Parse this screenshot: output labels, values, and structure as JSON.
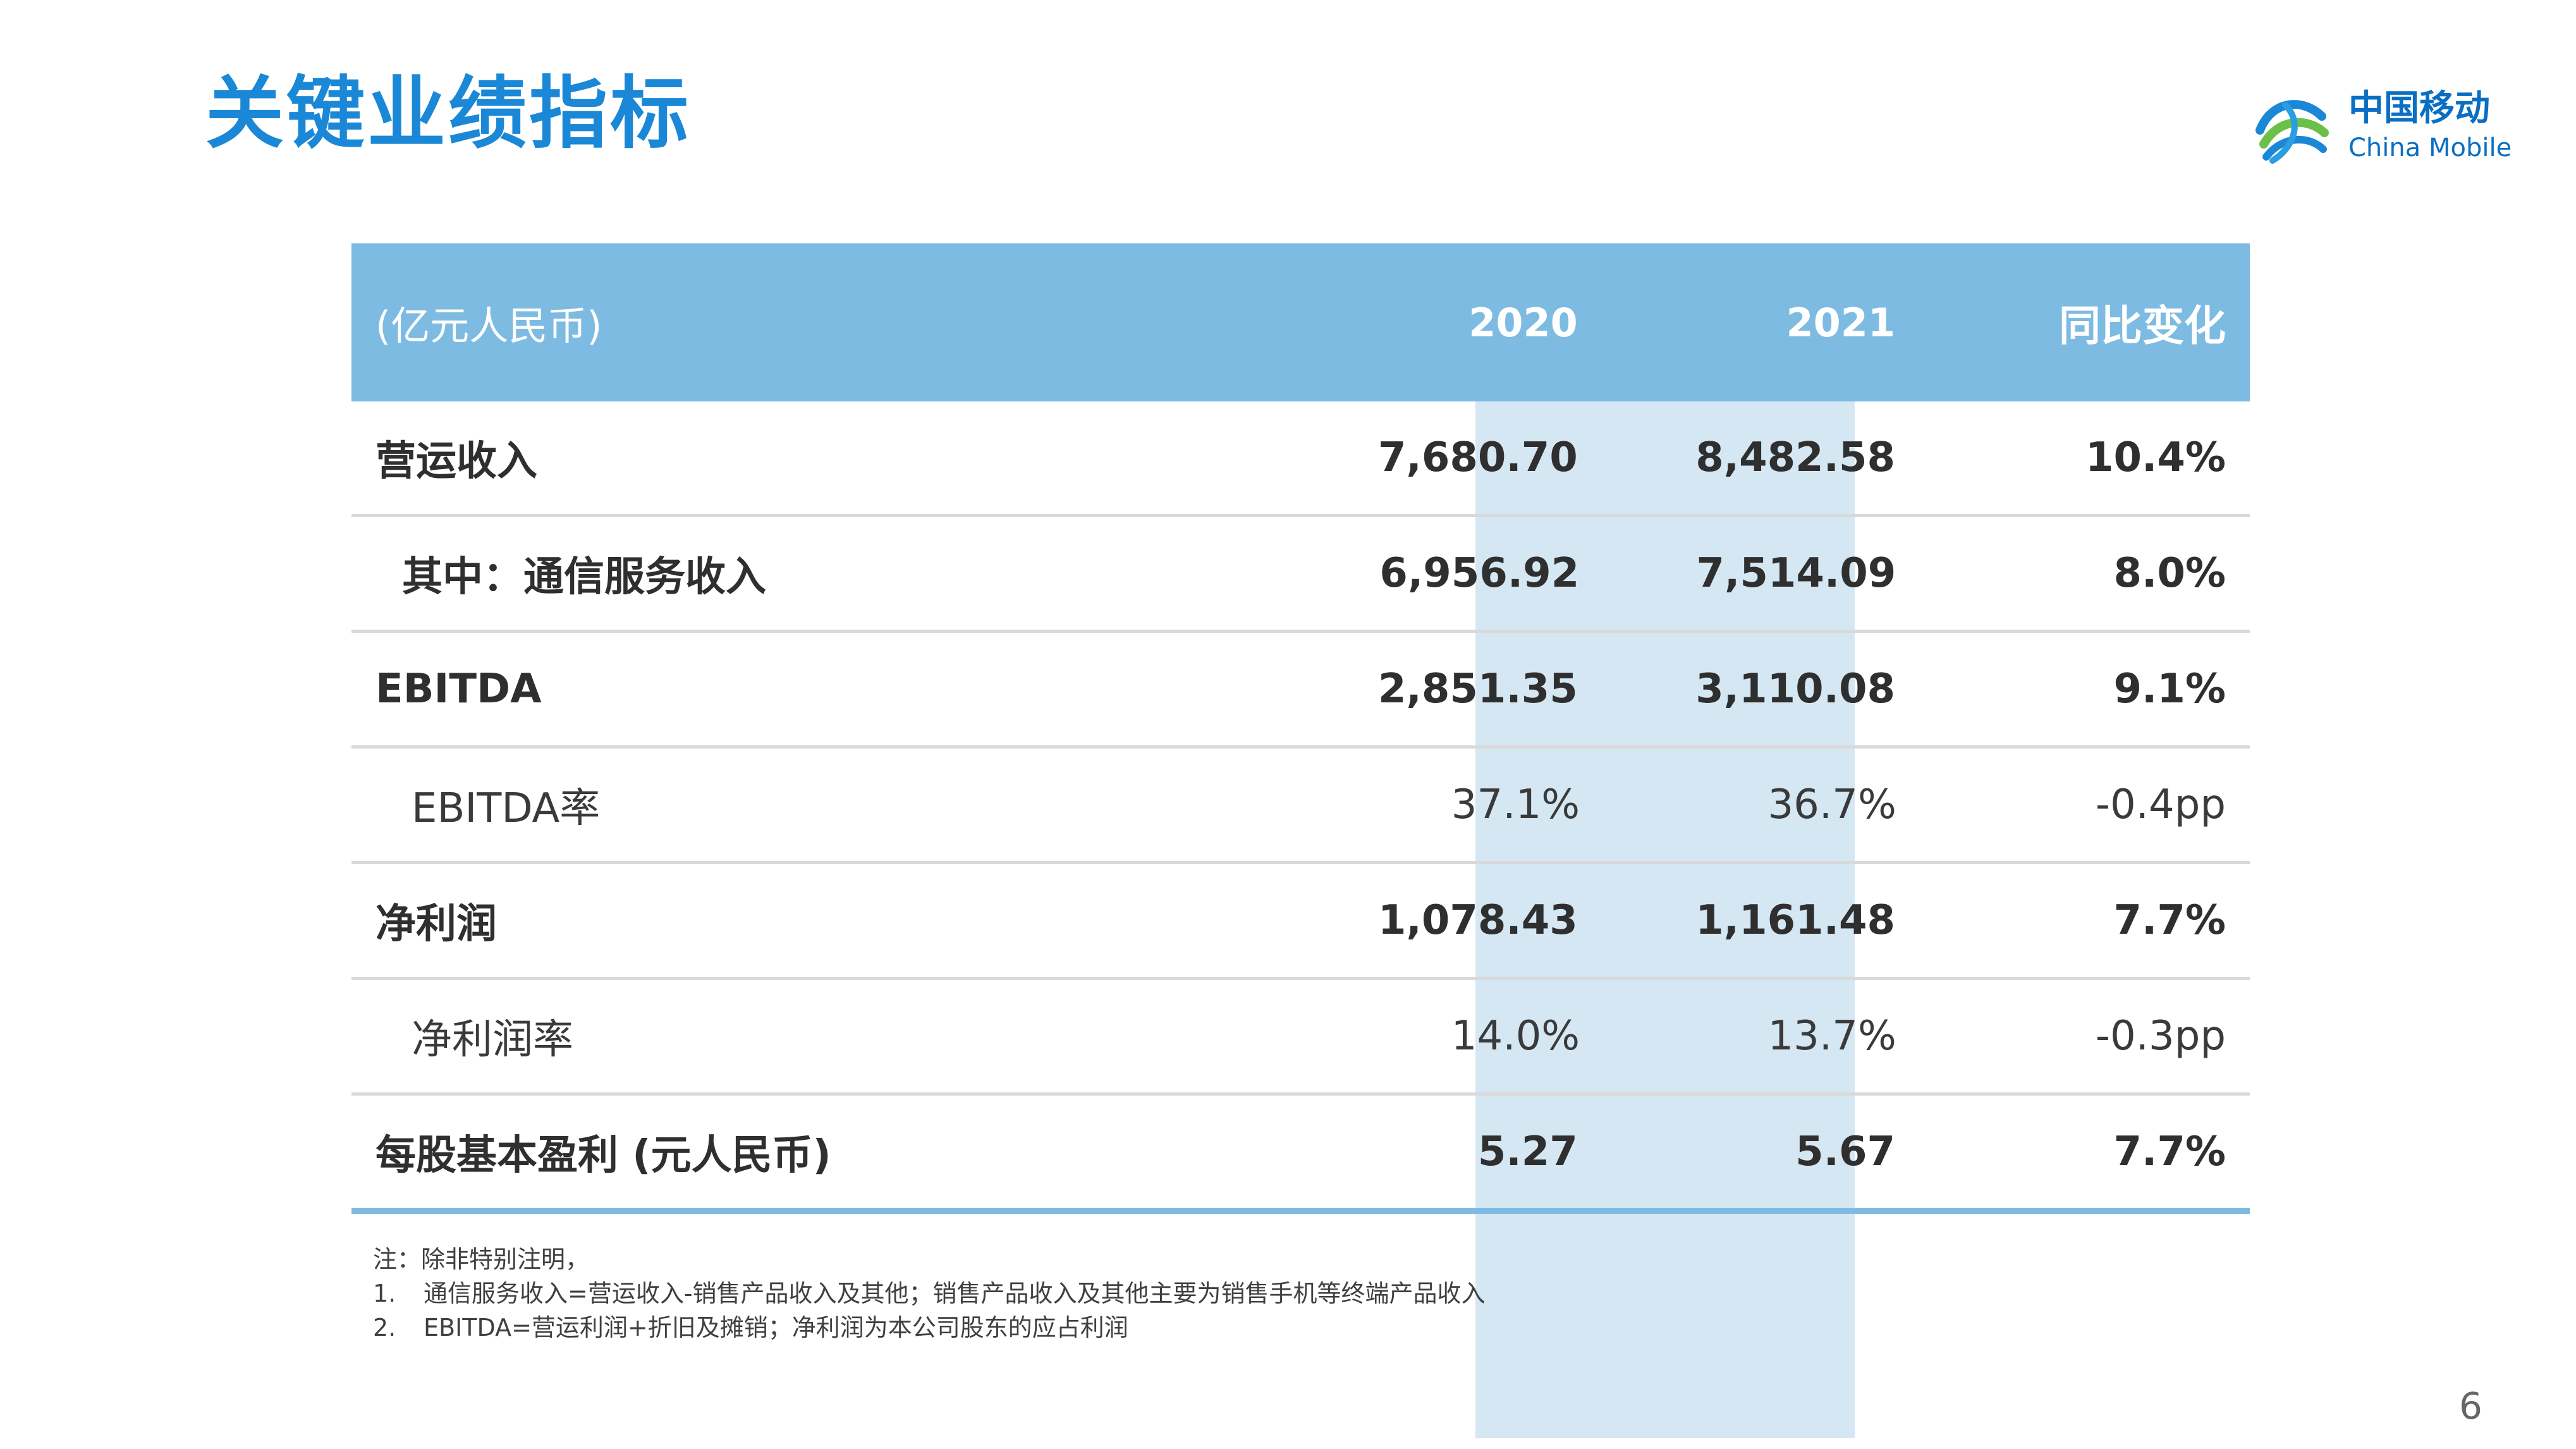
{
  "slide": {
    "title": "关键业绩指标",
    "page_number": "6"
  },
  "logo": {
    "name_cn": "中国移动",
    "name_en": "China Mobile"
  },
  "table": {
    "header": {
      "unit": "(亿元人民币)",
      "col_2020": "2020",
      "col_2021": "2021",
      "col_yoy": "同比变化"
    },
    "rows": [
      {
        "label": "营运收入",
        "v2020": "7,680.70",
        "v2021": "8,482.58",
        "yoy": "10.4%"
      },
      {
        "label": "其中：通信服务收入",
        "v2020": "6,956.92",
        "v2021": "7,514.09",
        "yoy": "8.0%"
      },
      {
        "label": "EBITDA",
        "v2020": "2,851.35",
        "v2021": "3,110.08",
        "yoy": "9.1%"
      },
      {
        "label": "EBITDA率",
        "v2020": "37.1%",
        "v2021": "36.7%",
        "yoy": "-0.4pp"
      },
      {
        "label": "净利润",
        "v2020": "1,078.43",
        "v2021": "1,161.48",
        "yoy": "7.7%"
      },
      {
        "label": "净利润率",
        "v2020": "14.0%",
        "v2021": "13.7%",
        "yoy": "-0.3pp"
      },
      {
        "label": "每股基本盈利 (元人民币)",
        "v2020": "5.27",
        "v2021": "5.67",
        "yoy": "7.7%"
      }
    ]
  },
  "notes": {
    "intro": "注：除非特别注明，",
    "items": [
      {
        "num": "1.",
        "text": "通信服务收入=营运收入-销售产品收入及其他；销售产品收入及其他主要为销售手机等终端产品收入"
      },
      {
        "num": "2.",
        "text": "EBITDA=营运利润+折旧及摊销；净利润为本公司股东的应占利润"
      }
    ]
  },
  "colors": {
    "title_blue": "#1a88d6",
    "header_blue": "#7dbbe2",
    "highlight_column": "#d4e7f3",
    "row_divider": "#d9d9d9"
  }
}
